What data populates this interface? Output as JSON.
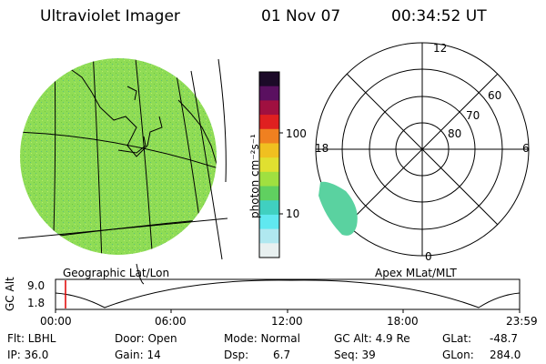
{
  "header": {
    "instrument": "Ultraviolet Imager",
    "date": "01 Nov 07",
    "time": "00:34:52 UT"
  },
  "globe_panel": {
    "caption": "Geographic Lat/Lon",
    "fill_color": "#8fdc55"
  },
  "colorbar": {
    "unit_label": "photon cm⁻²s⁻¹",
    "ticks": [
      "100",
      "10"
    ],
    "colors": [
      "#1c0a28",
      "#5a1060",
      "#a01040",
      "#e02020",
      "#f08020",
      "#f0c020",
      "#e0e030",
      "#a0e040",
      "#60d060",
      "#40d0c0",
      "#60e8f0",
      "#b0e8f0",
      "#e8f0f0"
    ]
  },
  "polar_panel": {
    "caption": "Apex MLat/MLT",
    "mlt_labels": {
      "top": "12",
      "right": "6",
      "bottom": "0",
      "left": "18"
    },
    "lat_labels": [
      "80",
      "70",
      "60"
    ]
  },
  "alt_plot": {
    "ylabel": "GC Alt",
    "yticks": [
      "9.0",
      "1.8"
    ],
    "xticks": [
      "00:00",
      "06:00",
      "12:00",
      "18:00",
      "23:59"
    ],
    "cursor_color": "#e00000"
  },
  "footer": {
    "flt": "Flt: LBHL",
    "ip": "IP: 36.0",
    "door": "Door: Open",
    "gain": "Gain: 14",
    "mode": "Mode: Normal",
    "dsp_label": "Dsp:",
    "dsp_value": "6.7",
    "gc_alt": "GC Alt: 4.9 Re",
    "seq": "Seq: 39",
    "glat_label": "GLat:",
    "glat_value": "-48.7",
    "glon_label": "GLon:",
    "glon_value": "284.0"
  }
}
